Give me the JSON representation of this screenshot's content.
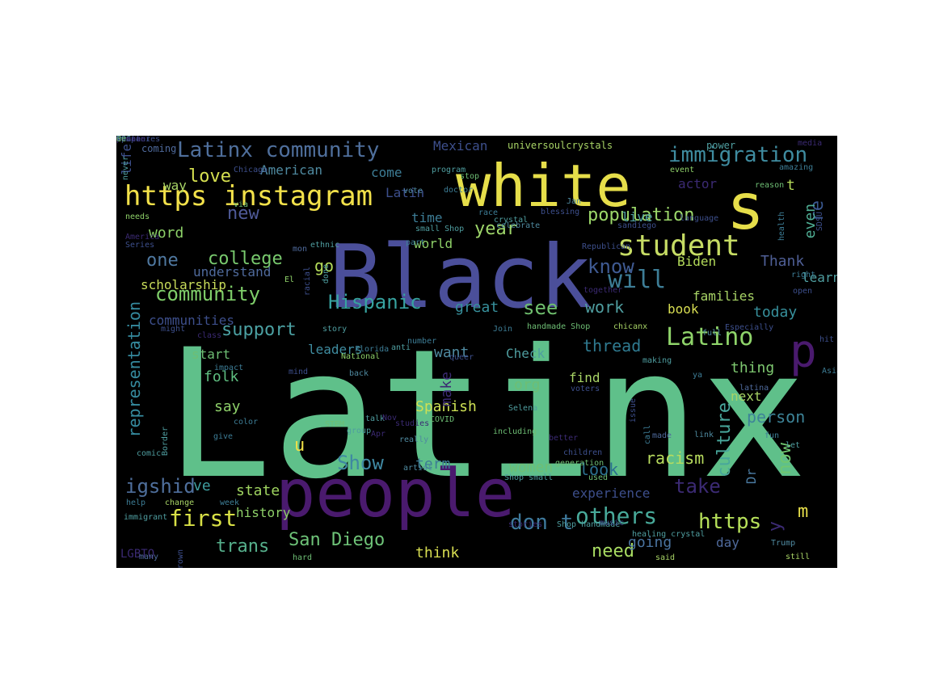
{
  "background": "#000000",
  "words": [
    {
      "t": "Latinx",
      "c": "#5fc08a"
    },
    {
      "t": "Black",
      "c": "#4b4f9a"
    },
    {
      "t": "people",
      "c": "#4a1a6e"
    },
    {
      "t": "white",
      "c": "#e6de4a"
    },
    {
      "t": "s",
      "c": "#e6de4a"
    },
    {
      "t": "p",
      "c": "#4a1a6e"
    },
    {
      "t": "https instagram",
      "c": "#f2e14a"
    },
    {
      "t": "Latinx community",
      "c": "#4f6f9c"
    },
    {
      "t": "student",
      "c": "#c6dc64"
    },
    {
      "t": "Latino",
      "c": "#8fd46a"
    },
    {
      "t": "will",
      "c": "#3d7d96"
    },
    {
      "t": "immigration",
      "c": "#3f8ca0"
    },
    {
      "t": "population",
      "c": "#9cd86a"
    },
    {
      "t": "know",
      "c": "#3f5a92"
    },
    {
      "t": "Hispanic",
      "c": "#37a3a0"
    },
    {
      "t": "Show",
      "c": "#3f88a2"
    },
    {
      "t": "igshid",
      "c": "#4f6f9c"
    },
    {
      "t": "first",
      "c": "#d8e046"
    },
    {
      "t": "others",
      "c": "#48aa9a"
    },
    {
      "t": "https",
      "c": "#b6e05a"
    },
    {
      "t": "don t",
      "c": "#3e7a9d"
    },
    {
      "t": "take",
      "c": "#3b2a73"
    },
    {
      "t": "community",
      "c": "#7fce6a"
    },
    {
      "t": "college",
      "c": "#79ca6e"
    },
    {
      "t": "one",
      "c": "#4f78a0"
    },
    {
      "t": "new",
      "c": "#4f5a98"
    },
    {
      "t": "support",
      "c": "#4ba0a2"
    },
    {
      "t": "representation",
      "c": "#358a9e"
    },
    {
      "t": "San Diego",
      "c": "#6ec378"
    },
    {
      "t": "trans",
      "c": "#56b08c"
    },
    {
      "t": "need",
      "c": "#a8dc62"
    },
    {
      "t": "culture",
      "c": "#48a79c"
    },
    {
      "t": "now",
      "c": "#6fc670"
    },
    {
      "t": "person",
      "c": "#3d8498"
    },
    {
      "t": "look",
      "c": "#2b6f8f"
    },
    {
      "t": "racism",
      "c": "#b8dc5e"
    },
    {
      "t": "work",
      "c": "#4f9ea0"
    },
    {
      "t": "see",
      "c": "#6fc06e"
    },
    {
      "t": "year",
      "c": "#9ed66a"
    },
    {
      "t": "love",
      "c": "#d6e050"
    },
    {
      "t": "word",
      "c": "#8cd068"
    },
    {
      "t": "go",
      "c": "#b4dc5a"
    },
    {
      "t": "Spanish",
      "c": "#cde054"
    },
    {
      "t": "folk",
      "c": "#5fbe80"
    },
    {
      "t": "say",
      "c": "#8ed06a"
    },
    {
      "t": "thread",
      "c": "#2f7a90"
    },
    {
      "t": "Thank",
      "c": "#4f5f96"
    },
    {
      "t": "m",
      "c": "#e6de4a"
    },
    {
      "t": "re",
      "c": "#3a5890"
    },
    {
      "t": "even",
      "c": "#4fae94"
    },
    {
      "t": "t",
      "c": "#b6dc5a"
    },
    {
      "t": "today",
      "c": "#37909c"
    },
    {
      "t": "u",
      "c": "#f0e046"
    },
    {
      "t": "ve",
      "c": "#3f9ea0"
    },
    {
      "t": "state",
      "c": "#9fd460"
    },
    {
      "t": "going",
      "c": "#4a74a0"
    },
    {
      "t": "day",
      "c": "#4f6a9c"
    },
    {
      "t": "think",
      "c": "#d8de52"
    },
    {
      "t": "y",
      "c": "#3b2a73"
    },
    {
      "t": "great",
      "c": "#37909c"
    },
    {
      "t": "want",
      "c": "#4f8aa0"
    },
    {
      "t": "make",
      "c": "#3b2a73"
    },
    {
      "t": "org",
      "c": "#6ebe74"
    },
    {
      "t": "women",
      "c": "#6ebe74"
    },
    {
      "t": "term",
      "c": "#3d7d96"
    },
    {
      "t": "book",
      "c": "#d8de52"
    },
    {
      "t": "Biden",
      "c": "#b4dc5a"
    },
    {
      "t": "families",
      "c": "#a8d466"
    },
    {
      "t": "learn",
      "c": "#4f9ea0"
    },
    {
      "t": "next",
      "c": "#a8d466"
    },
    {
      "t": "thing",
      "c": "#7ec870"
    },
    {
      "t": "Dr",
      "c": "#4a7aa0"
    },
    {
      "t": "experience",
      "c": "#3d4f8c"
    },
    {
      "t": "history",
      "c": "#8ed068"
    },
    {
      "t": "leaders",
      "c": "#3f8ca0"
    },
    {
      "t": "start",
      "c": "#6ebe74"
    },
    {
      "t": "understand",
      "c": "#4f6a9c"
    },
    {
      "t": "scholarship",
      "c": "#c8dc5a"
    },
    {
      "t": "communities",
      "c": "#3d4f8c"
    },
    {
      "t": "American",
      "c": "#4f8aa0"
    },
    {
      "t": "come",
      "c": "#3d7d96"
    },
    {
      "t": "way",
      "c": "#a8d466"
    },
    {
      "t": "Latin",
      "c": "#3d4f8c"
    },
    {
      "t": "time",
      "c": "#3d7d96"
    },
    {
      "t": "world",
      "c": "#8ed068"
    },
    {
      "t": "live",
      "c": "#4f9ea0"
    },
    {
      "t": "Mexican",
      "c": "#3d4f8c"
    },
    {
      "t": "actor",
      "c": "#3b2a73"
    },
    {
      "t": "Check",
      "c": "#4f9ea0"
    },
    {
      "t": "find",
      "c": "#a8d466"
    },
    {
      "t": "LGBTQ",
      "c": "#3b2a73"
    },
    {
      "t": "life",
      "c": "#3d4f8c"
    },
    {
      "t": "coming",
      "c": "#4f6a9c"
    },
    {
      "t": "universoulcrystals",
      "c": "#a8d466"
    },
    {
      "t": "power",
      "c": "#4f9ea0"
    },
    {
      "t": "media",
      "c": "#3b2a73"
    },
    {
      "t": "event",
      "c": "#8ed068"
    },
    {
      "t": "amazing",
      "c": "#3d7d96"
    },
    {
      "t": "reason",
      "c": "#6ebe74"
    },
    {
      "t": "doctor",
      "c": "#3d7d96"
    },
    {
      "t": "stop",
      "c": "#6ebe74"
    },
    {
      "t": "vote",
      "c": "#4f8aa0"
    },
    {
      "t": "program",
      "c": "#4f9ea0"
    },
    {
      "t": "Chicago",
      "c": "#3d4f8c"
    },
    {
      "t": "via",
      "c": "#6ebe74"
    },
    {
      "t": "Jan",
      "c": "#4f8aa0"
    },
    {
      "t": "language",
      "c": "#3d4f8c"
    },
    {
      "t": "race",
      "c": "#3d7d96"
    },
    {
      "t": "blessing",
      "c": "#3d4f8c"
    },
    {
      "t": "crystal",
      "c": "#4f9ea0"
    },
    {
      "t": "needs",
      "c": "#8ed068"
    },
    {
      "t": "small Shop",
      "c": "#4f9ea0"
    },
    {
      "t": "celebrate",
      "c": "#4f8aa0"
    },
    {
      "t": "part",
      "c": "#3d7d96"
    },
    {
      "t": "Republican",
      "c": "#3d4f8c"
    },
    {
      "t": "sandiego",
      "c": "#3d4f8c"
    },
    {
      "t": "health",
      "c": "#3d7d96"
    },
    {
      "t": "SDSU",
      "c": "#3d4f8c"
    },
    {
      "t": "America",
      "c": "#3b2a73"
    },
    {
      "t": "Series",
      "c": "#3d4f8c"
    },
    {
      "t": "mon",
      "c": "#4f6a9c"
    },
    {
      "t": "ethnic",
      "c": "#4f9ea0"
    },
    {
      "t": "done",
      "c": "#4f9ea0"
    },
    {
      "t": "El",
      "c": "#8ed068"
    },
    {
      "t": "racial",
      "c": "#3d4f8c"
    },
    {
      "t": "together",
      "c": "#3b2a73"
    },
    {
      "t": "open",
      "c": "#3d4f8c"
    },
    {
      "t": "right",
      "c": "#3d7d96"
    },
    {
      "t": "story",
      "c": "#4f9ea0"
    },
    {
      "t": "Join",
      "c": "#3d7d96"
    },
    {
      "t": "handmade Shop",
      "c": "#6ebe74"
    },
    {
      "t": "chicanx",
      "c": "#a8d466"
    },
    {
      "t": "full",
      "c": "#4f8aa0"
    },
    {
      "t": "Especially",
      "c": "#3d4f8c"
    },
    {
      "t": "hit",
      "c": "#3d4f8c"
    },
    {
      "t": "might",
      "c": "#3d4f8c"
    },
    {
      "t": "class",
      "c": "#3b2a73"
    },
    {
      "t": "number",
      "c": "#3d7d96"
    },
    {
      "t": "National",
      "c": "#8ed068"
    },
    {
      "t": "Florida",
      "c": "#3d7d96"
    },
    {
      "t": "anti",
      "c": "#4f9ea0"
    },
    {
      "t": "queer",
      "c": "#3d4f8c"
    },
    {
      "t": "ya",
      "c": "#3d7d96"
    },
    {
      "t": "Asian",
      "c": "#3d7d96"
    },
    {
      "t": "making",
      "c": "#4f9ea0"
    },
    {
      "t": "impact",
      "c": "#3d7d96"
    },
    {
      "t": "mind",
      "c": "#3d4f8c"
    },
    {
      "t": "back",
      "c": "#4f8aa0"
    },
    {
      "t": "voters",
      "c": "#3d4f8c"
    },
    {
      "t": "latina",
      "c": "#4f6a9c"
    },
    {
      "t": "issue",
      "c": "#3d4f8c"
    },
    {
      "t": "color",
      "c": "#3d7d96"
    },
    {
      "t": "STEM",
      "c": "#6ebe74"
    },
    {
      "t": "talk",
      "c": "#4f9ea0"
    },
    {
      "t": "studies",
      "c": "#3b2a73"
    },
    {
      "t": "COVID",
      "c": "#6ebe74"
    },
    {
      "t": "Selena",
      "c": "#4f9ea0"
    },
    {
      "t": "Nov",
      "c": "#3b2a73"
    },
    {
      "t": "Apr",
      "c": "#3b2a73"
    },
    {
      "t": "group",
      "c": "#4f9ea0"
    },
    {
      "t": "including",
      "c": "#6ebe74"
    },
    {
      "t": "really",
      "c": "#4f8aa0"
    },
    {
      "t": "better",
      "c": "#3b2a73"
    },
    {
      "t": "made",
      "c": "#4f6a9c"
    },
    {
      "t": "call",
      "c": "#3d7d96"
    },
    {
      "t": "link",
      "c": "#4f8aa0"
    },
    {
      "t": "fun",
      "c": "#3d7d96"
    },
    {
      "t": "let",
      "c": "#4f9ea0"
    },
    {
      "t": "Border",
      "c": "#4f9ea0"
    },
    {
      "t": "give",
      "c": "#3d7d96"
    },
    {
      "t": "comic",
      "c": "#4f9ea0"
    },
    {
      "t": "children",
      "c": "#3d4f8c"
    },
    {
      "t": "artist",
      "c": "#4f8aa0"
    },
    {
      "t": "generation",
      "c": "#6ebe74"
    },
    {
      "t": "Shop small",
      "c": "#4f9ea0"
    },
    {
      "t": "used",
      "c": "#6ebe74"
    },
    {
      "t": "help",
      "c": "#3d7d96"
    },
    {
      "t": "change",
      "c": "#a8d466"
    },
    {
      "t": "week",
      "c": "#3d7d96"
    },
    {
      "t": "immigrant",
      "c": "#4f9ea0"
    },
    {
      "t": "Shop handmade",
      "c": "#4f9ea0"
    },
    {
      "t": "music",
      "c": "#3d4f8c"
    },
    {
      "t": "healing crystal",
      "c": "#4f9ea0"
    },
    {
      "t": "stories",
      "c": "#3b2a73"
    },
    {
      "t": "Trump",
      "c": "#4f8aa0"
    },
    {
      "t": "still",
      "c": "#a8d466"
    },
    {
      "t": "many",
      "c": "#4f6a9c"
    },
    {
      "t": "Brown",
      "c": "#3d4f8c"
    },
    {
      "t": "hard",
      "c": "#6ebe74"
    },
    {
      "t": "said",
      "c": "#a8d466"
    },
    {
      "t": "never",
      "c": "#4f9ea0"
    },
    {
      "t": "twitter",
      "c": "#3d4f8c"
    },
    {
      "t": "bc",
      "c": "#a8d466"
    },
    {
      "t": "space",
      "c": "#3d4f8c"
    },
    {
      "t": "woman",
      "c": "#3d4f8c"
    },
    {
      "t": "POC",
      "c": "#4f9ea0"
    },
    {
      "t": "companies",
      "c": "#3d4f8c"
    },
    {
      "t": "please",
      "c": "#3b2a73"
    },
    {
      "t": "de",
      "c": "#6ebe74"
    }
  ]
}
